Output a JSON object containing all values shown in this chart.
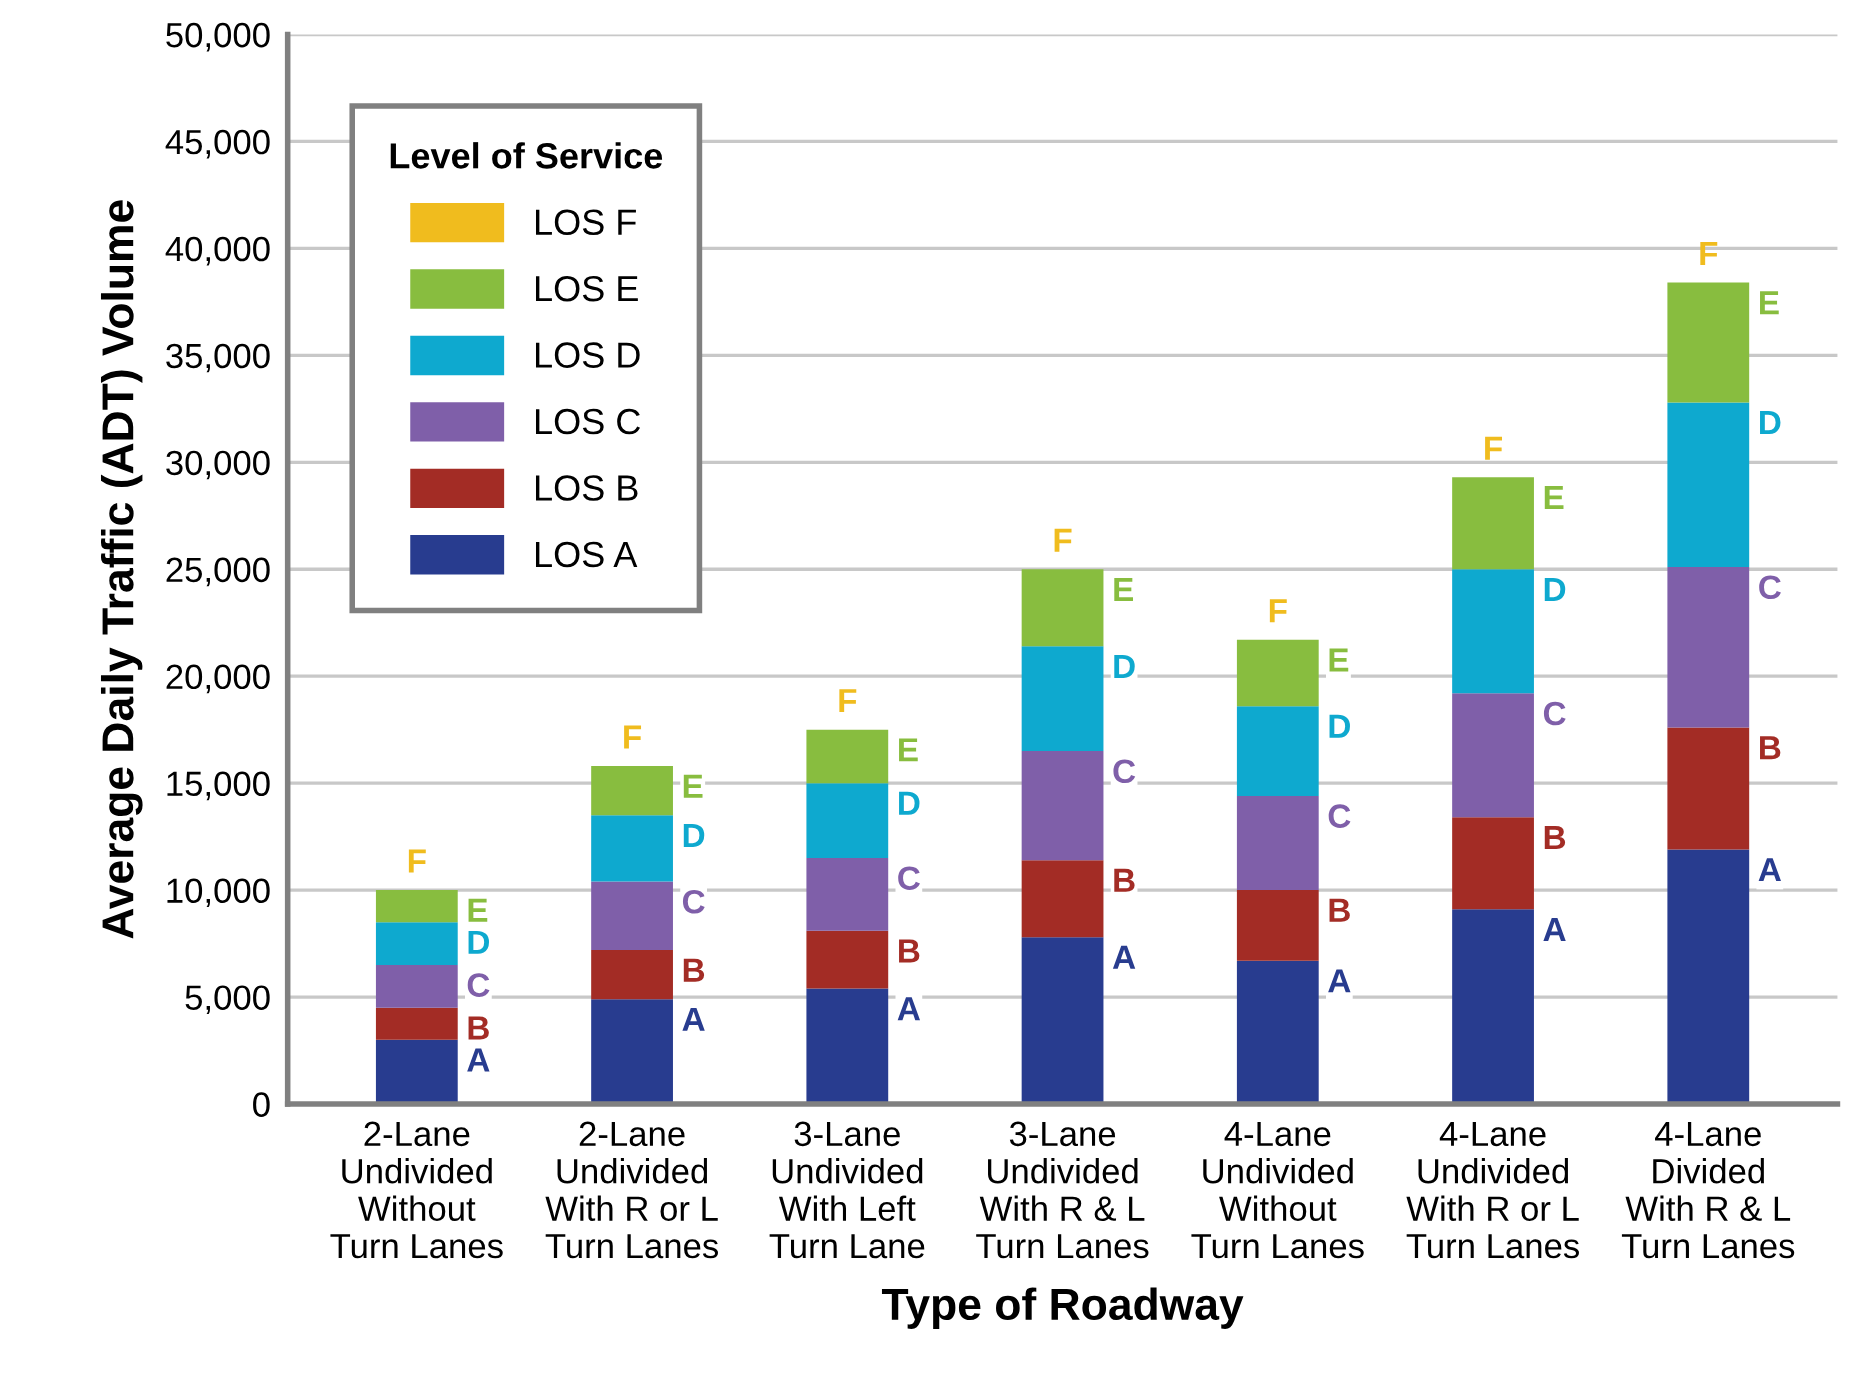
{
  "chart_data": {
    "type": "bar",
    "stacked": true,
    "xlabel": "Type of Roadway",
    "ylabel": "Average Daily Traffic (ADT) Volume",
    "legend_title": "Level of Service",
    "legend": "top left",
    "grid": "y",
    "categories": [
      "2-Lane\nUndivided\nWithout\nTurn Lanes",
      "2-Lane\nUndivided\nWith R or L\nTurn Lanes",
      "3-Lane\nUndivided\nWith Left\nTurn Lane",
      "3-Lane\nUndivided\nWith R & L\nTurn Lanes",
      "4-Lane\nUndivided\nWithout\nTurn Lanes",
      "4-Lane\nUndivided\nWith R or L\nTurn Lanes",
      "4-Lane\nDivided\nWith R & L\nTurn Lanes"
    ],
    "ylim": [
      0,
      50000
    ],
    "yticks": [
      0,
      {
        "value": 5000,
        "label": "5,000"
      },
      {
        "value": 10000,
        "label": "10,000"
      },
      {
        "value": 15000,
        "label": "15,000"
      },
      {
        "value": 20000,
        "label": "20,000"
      },
      {
        "value": 25000,
        "label": "25,000"
      },
      {
        "value": 30000,
        "label": "30,000"
      },
      {
        "value": 35000,
        "label": "35,000"
      },
      {
        "value": 40000,
        "label": "40,000"
      },
      {
        "value": 45000,
        "label": "45,000"
      },
      {
        "value": 50000,
        "label": "50,000"
      }
    ],
    "series": [
      {
        "name": "LOS A",
        "color": "#283c8f",
        "values": [
          3000,
          4900,
          5400,
          7800,
          6700,
          9100,
          11900
        ],
        "value_labels": [
          "A",
          "A",
          "A",
          "A",
          "A",
          "A",
          "A"
        ]
      },
      {
        "name": "LOS B",
        "color": "#a32c25",
        "values": [
          1500,
          2300,
          2700,
          3600,
          3300,
          4300,
          5700
        ],
        "value_labels": [
          "B",
          "B",
          "B",
          "B",
          "B",
          "B",
          "B"
        ]
      },
      {
        "name": "LOS C",
        "color": "#7f5fa9",
        "values": [
          2000,
          3200,
          3400,
          5100,
          4400,
          5800,
          7500
        ],
        "value_labels": [
          "C",
          "C",
          "C",
          "C",
          "C",
          "C",
          "C"
        ]
      },
      {
        "name": "LOS D",
        "color": "#0ea9cf",
        "values": [
          2000,
          3100,
          3500,
          4900,
          4200,
          5800,
          7700
        ],
        "value_labels": [
          "D",
          "D",
          "D",
          "D",
          "D",
          "D",
          "D"
        ]
      },
      {
        "name": "LOS E",
        "color": "#88bd3f",
        "values": [
          1500,
          2300,
          2500,
          3600,
          3100,
          4300,
          5600
        ],
        "value_labels": [
          "E",
          "E",
          "E",
          "E",
          "E",
          "E",
          "E"
        ]
      },
      {
        "name": "LOS F",
        "color": "#f0bc1e",
        "values": [
          0,
          0,
          0,
          0,
          0,
          0,
          0
        ],
        "value_labels": [
          "F",
          "F",
          "F",
          "F",
          "F",
          "F",
          "F"
        ]
      }
    ]
  }
}
